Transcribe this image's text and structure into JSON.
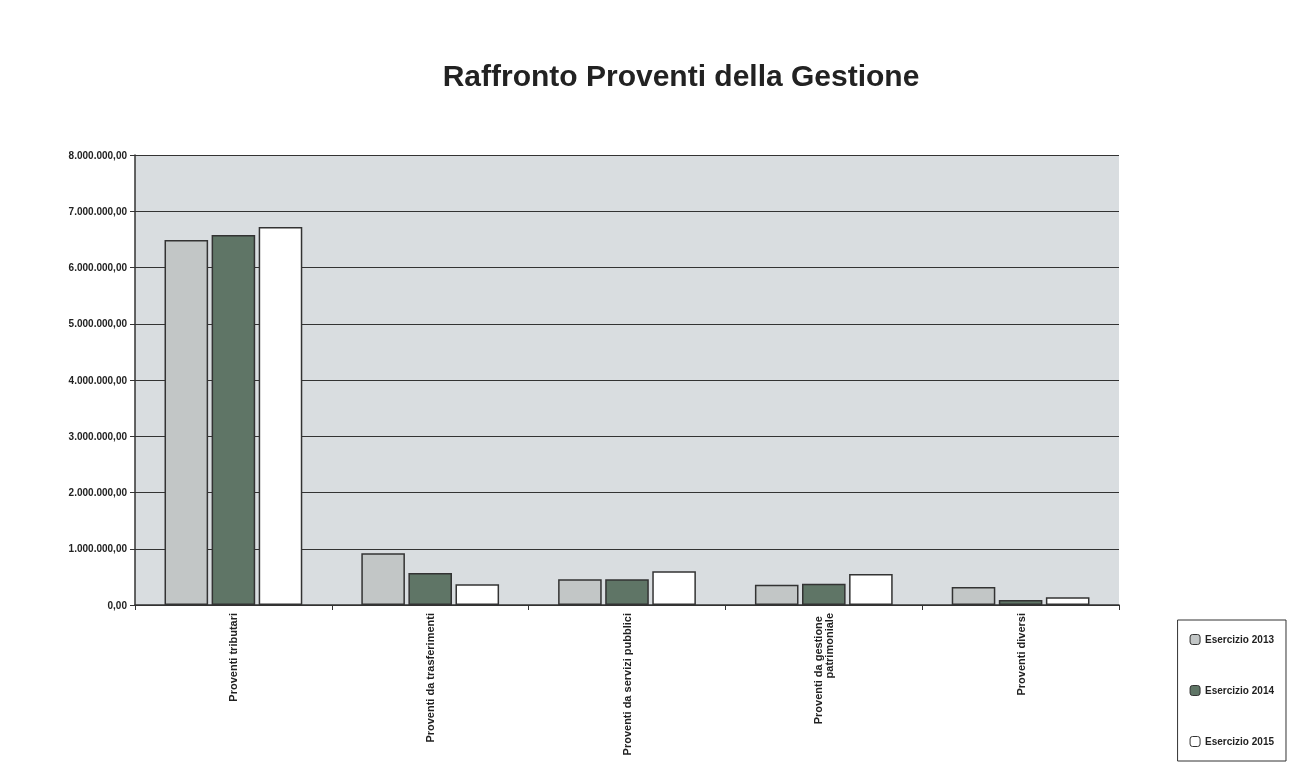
{
  "chart_data": {
    "type": "bar",
    "title": "Raffronto Proventi della Gestione",
    "categories": [
      "Proventi tributari",
      "Proventi da trasferimenti",
      "Proventi da servizi pubblici",
      "Proventi da gestione patrimoniale",
      "Proventi diversi"
    ],
    "series": [
      {
        "name": "Esercizio 2013",
        "color": "#c2c6c6",
        "values": [
          6490000,
          920000,
          460000,
          360000,
          320000
        ]
      },
      {
        "name": "Esercizio 2014",
        "color": "#5f7566",
        "values": [
          6580000,
          570000,
          460000,
          380000,
          90000
        ]
      },
      {
        "name": "Esercizio 2015",
        "color": "#ffffff",
        "values": [
          6720000,
          370000,
          600000,
          550000,
          140000
        ]
      }
    ],
    "ylim": [
      0,
      8000000
    ],
    "yticks": [
      {
        "value": 0,
        "label": "0,00"
      },
      {
        "value": 1000000,
        "label": "1.000.000,00"
      },
      {
        "value": 2000000,
        "label": "2.000.000,00"
      },
      {
        "value": 3000000,
        "label": "3.000.000,00"
      },
      {
        "value": 4000000,
        "label": "4.000.000,00"
      },
      {
        "value": 5000000,
        "label": "5.000.000,00"
      },
      {
        "value": 6000000,
        "label": "6.000.000,00"
      },
      {
        "value": 7000000,
        "label": "7.000.000,00"
      },
      {
        "value": 8000000,
        "label": "8.000.000,00"
      }
    ],
    "grid": "y",
    "legend": "bottom right"
  }
}
